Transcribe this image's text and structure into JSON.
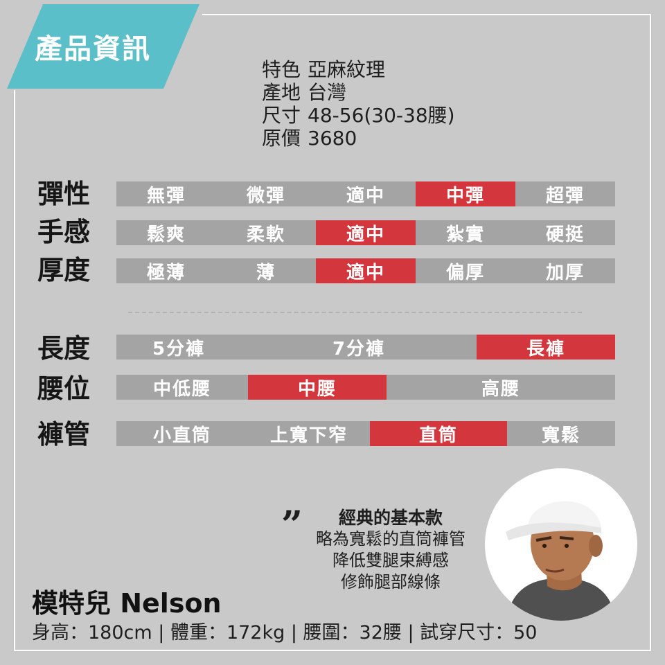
{
  "banner": {
    "title": "產品資訊"
  },
  "info": [
    {
      "key": "特色",
      "value": "亞麻紋理"
    },
    {
      "key": "產地",
      "value": "台灣"
    },
    {
      "key": "尺寸",
      "value": "48-56(30-38腰)"
    },
    {
      "key": "原價",
      "value": "3680"
    }
  ],
  "ratings": {
    "elasticity": {
      "label": "彈性",
      "options": [
        "無彈",
        "微彈",
        "適中",
        "中彈",
        "超彈"
      ],
      "selected": 3
    },
    "feel": {
      "label": "手感",
      "options": [
        "鬆爽",
        "柔軟",
        "適中",
        "紮實",
        "硬挺"
      ],
      "selected": 2
    },
    "thickness": {
      "label": "厚度",
      "options": [
        "極薄",
        "薄",
        "適中",
        "偏厚",
        "加厚"
      ],
      "selected": 2
    },
    "length": {
      "label": "長度",
      "options": [
        "5分褲",
        "7分褲",
        "長褲"
      ],
      "selected": 2
    },
    "waist": {
      "label": "腰位",
      "options": [
        "中低腰",
        "中腰",
        "高腰"
      ],
      "selected": 1
    },
    "leg": {
      "label": "褲管",
      "options": [
        "小直筒",
        "上寬下窄",
        "直筒",
        "寬鬆"
      ],
      "selected": 2
    }
  },
  "quote": {
    "mark": "”",
    "title": "經典的基本款",
    "lines": [
      "略為寬鬆的直筒褲管",
      "降低雙腿束縛感",
      "修飾腿部線條"
    ]
  },
  "model": {
    "name": "模特兒 Nelson",
    "stats": "身高：180cm | 體重：172kg | 腰圍：32腰 | 試穿尺寸：50"
  },
  "colors": {
    "accent": "#d3363c",
    "bar": "#a4a4a4",
    "banner": "#5bbfca",
    "background": "#c9c9c9"
  }
}
